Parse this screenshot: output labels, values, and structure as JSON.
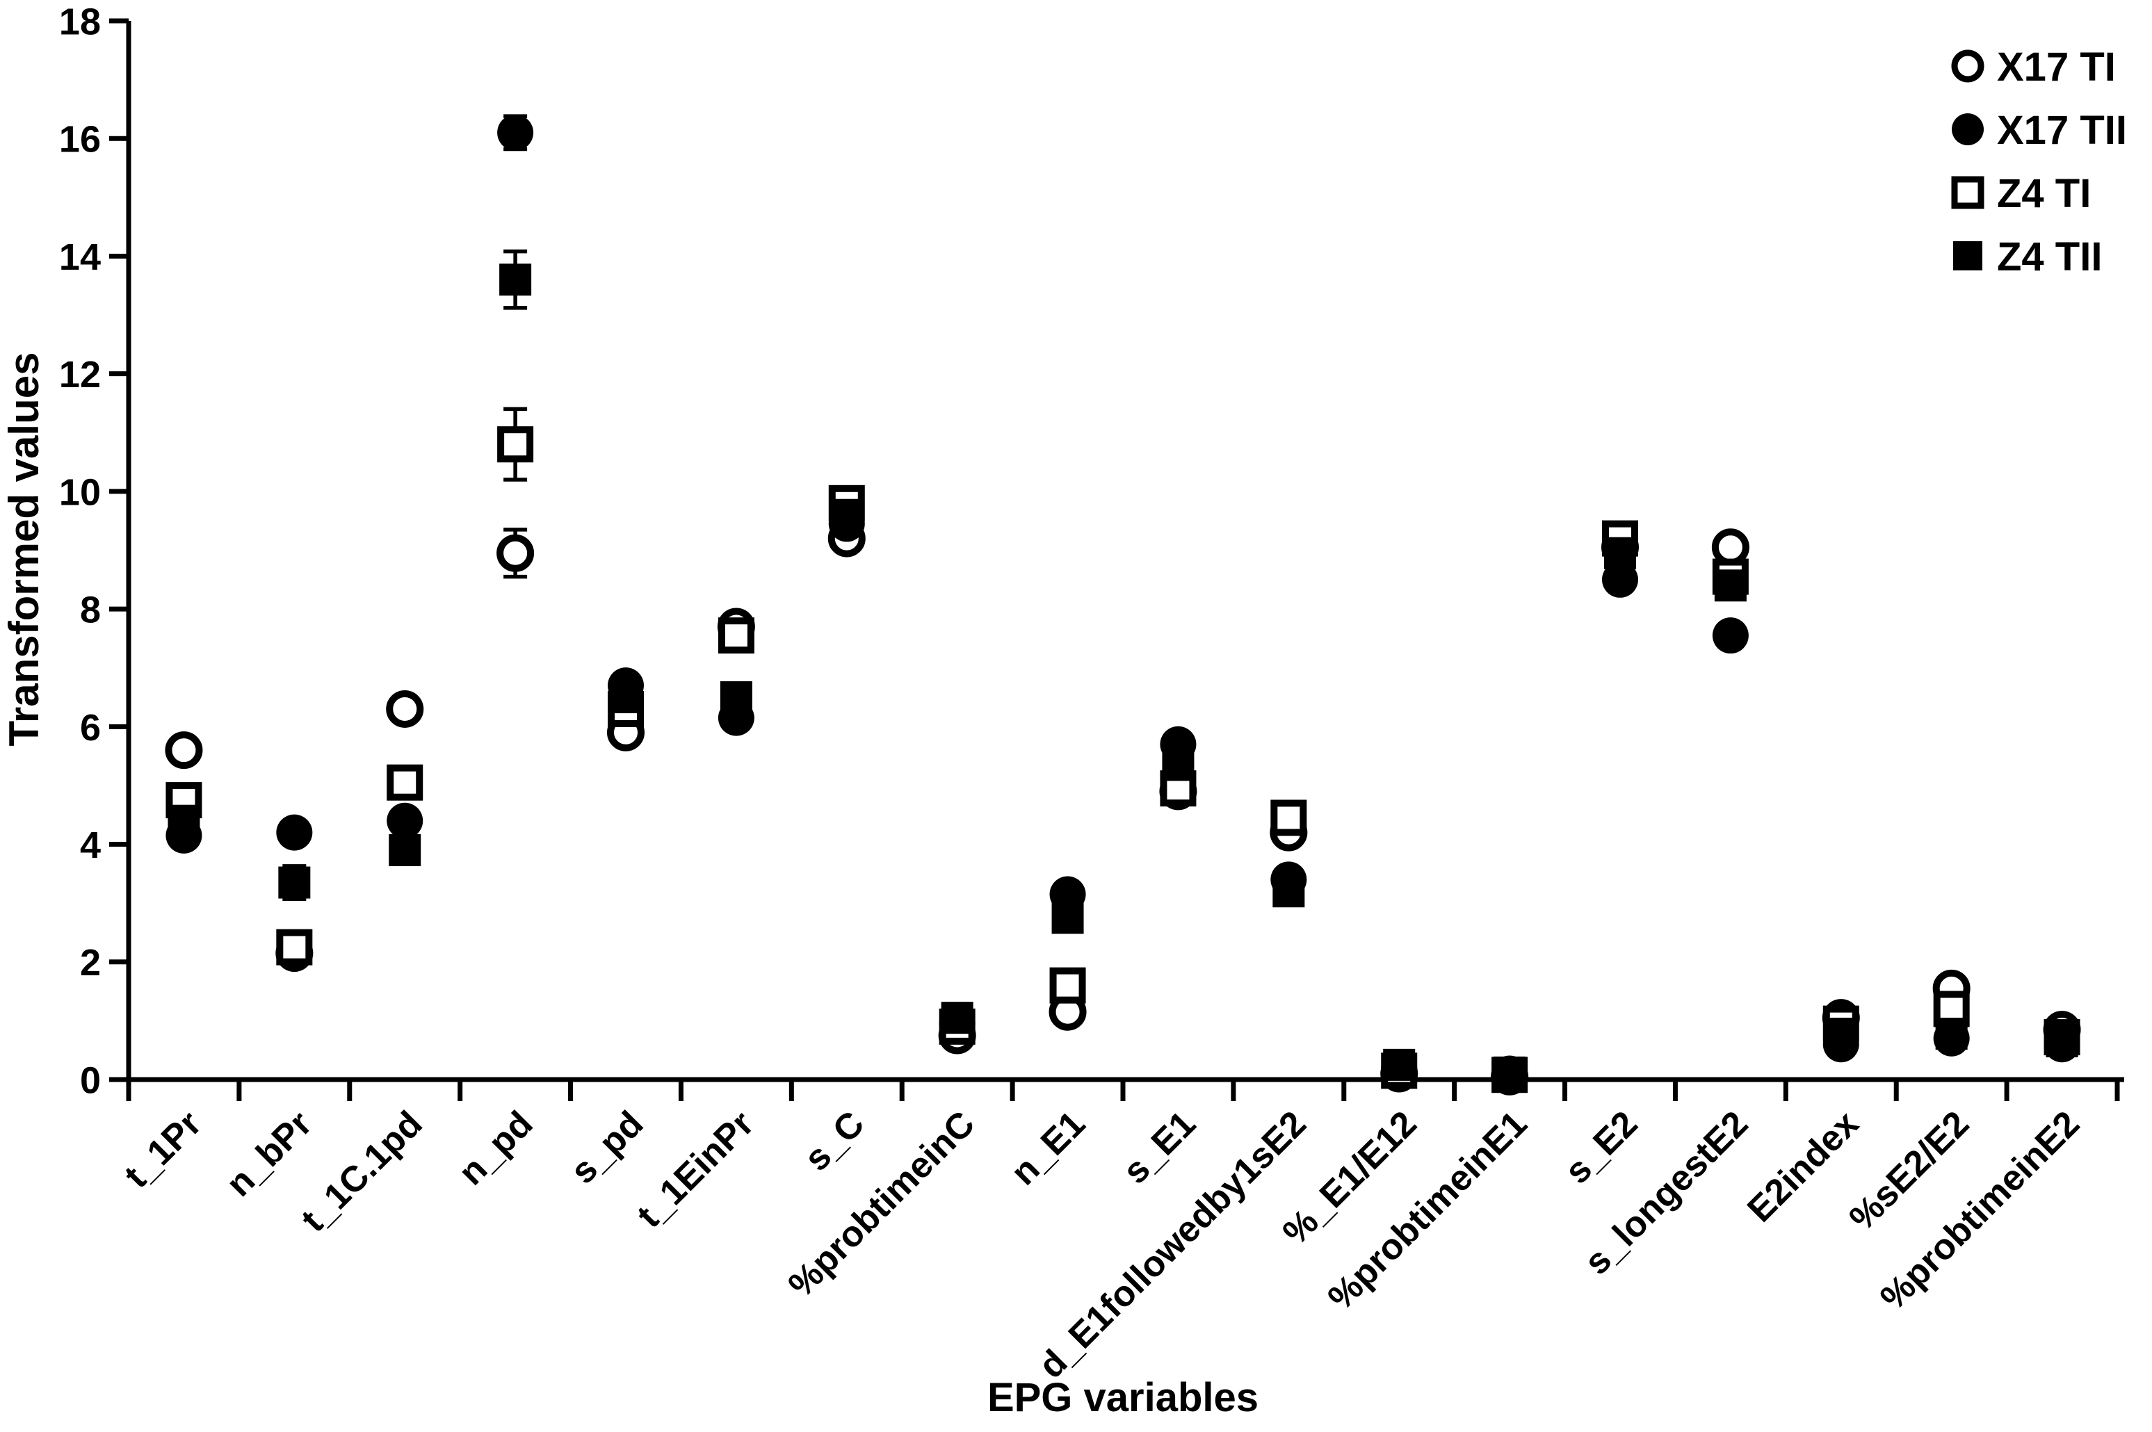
{
  "figure": {
    "background": "#ffffff",
    "ink_color": "#000000"
  },
  "chart_data": {
    "type": "scatter",
    "title": "",
    "xlabel": "EPG variables",
    "ylabel": "Transformed values",
    "ylim": [
      0,
      18
    ],
    "y_ticks": [
      0,
      2,
      4,
      6,
      8,
      10,
      12,
      14,
      16,
      18
    ],
    "grid": false,
    "legend_position": "top-right",
    "categories": [
      "t_1Pr",
      "n_bPr",
      "t_1C.1pd",
      "n_pd",
      "s_pd",
      "t_1EinPr",
      "s_C",
      "%probtimeinC",
      "n_E1",
      "s_E1",
      "d_E1followedby1sE2",
      "%_E1/E12",
      "%probtimeinE1",
      "s_E2",
      "s_longestE2",
      "E2index",
      "%sE2/E2",
      "%probtimeinE2"
    ],
    "series": [
      {
        "name": "X17 TI",
        "marker": "open-circle",
        "values": [
          5.6,
          2.15,
          6.3,
          8.95,
          5.9,
          7.7,
          9.2,
          0.75,
          1.15,
          4.9,
          4.2,
          0.1,
          0.05,
          9.05,
          9.05,
          1.05,
          1.55,
          0.85
        ],
        "errors": [
          0.15,
          0.1,
          0.15,
          0.4,
          0.12,
          0.15,
          0.12,
          0.1,
          0.1,
          0.12,
          0.12,
          0.05,
          0.05,
          0.12,
          0.15,
          0.1,
          0.1,
          0.08
        ]
      },
      {
        "name": "X17 TII",
        "marker": "filled-circle",
        "values": [
          4.15,
          4.2,
          4.4,
          16.1,
          6.7,
          6.15,
          9.45,
          0.95,
          3.15,
          5.7,
          3.4,
          0.2,
          0.1,
          8.5,
          7.55,
          0.6,
          0.7,
          0.6
        ],
        "errors": [
          0.2,
          0.18,
          0.2,
          0.28,
          0.15,
          0.12,
          0.12,
          0.1,
          0.12,
          0.12,
          0.12,
          0.06,
          0.05,
          0.12,
          0.1,
          0.08,
          0.08,
          0.06
        ]
      },
      {
        "name": "Z4 TI",
        "marker": "open-square",
        "values": [
          4.75,
          2.25,
          5.05,
          10.8,
          6.3,
          7.55,
          9.8,
          0.9,
          1.6,
          4.95,
          4.45,
          0.15,
          0.08,
          9.2,
          8.55,
          0.95,
          1.2,
          0.72
        ],
        "errors": [
          0.2,
          0.1,
          0.15,
          0.6,
          0.2,
          0.15,
          0.12,
          0.1,
          0.12,
          0.1,
          0.12,
          0.05,
          0.04,
          0.12,
          0.12,
          0.1,
          0.15,
          0.06
        ]
      },
      {
        "name": "Z4 TII",
        "marker": "filled-square",
        "values": [
          4.4,
          3.35,
          3.9,
          13.6,
          6.5,
          6.5,
          9.6,
          1.05,
          2.75,
          5.35,
          3.2,
          0.25,
          0.12,
          8.95,
          8.4,
          0.78,
          0.78,
          0.65
        ],
        "errors": [
          0.15,
          0.28,
          0.15,
          0.48,
          0.15,
          0.12,
          0.12,
          0.1,
          0.15,
          0.12,
          0.12,
          0.07,
          0.05,
          0.12,
          0.12,
          0.08,
          0.08,
          0.06
        ]
      }
    ]
  }
}
